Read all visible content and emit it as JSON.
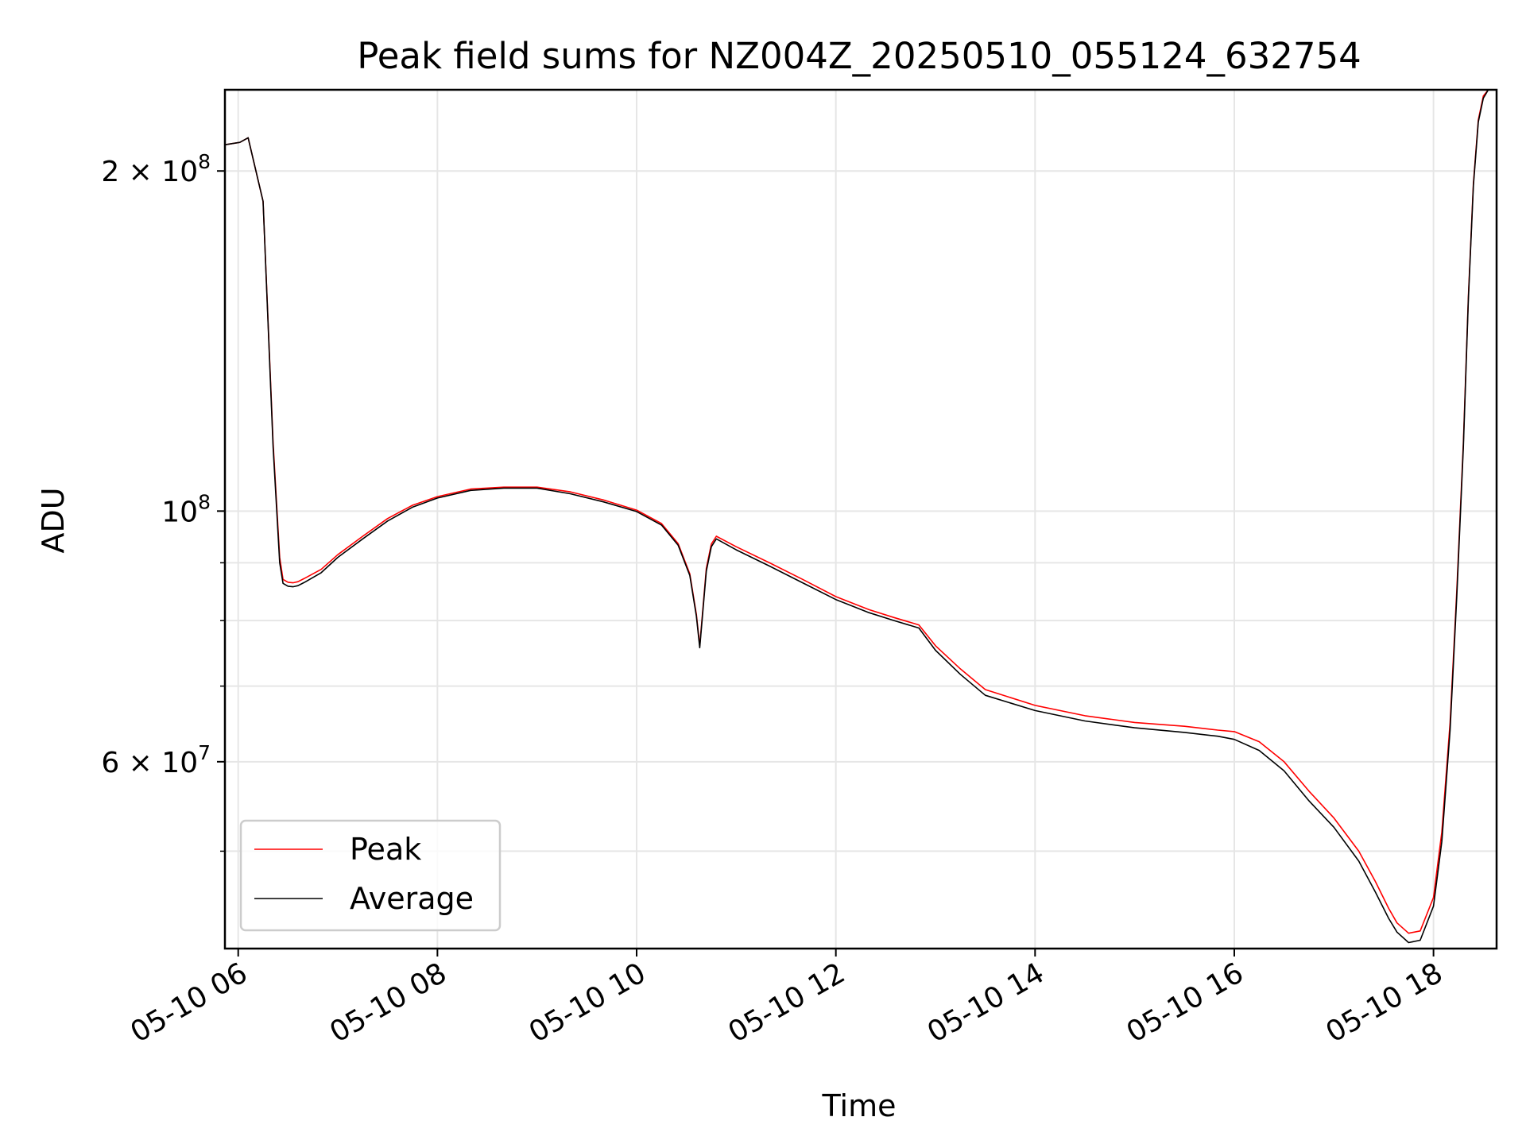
{
  "chart_data": {
    "type": "line",
    "title": "Peak field sums for NZ004Z_20250510_055124_632754",
    "xlabel": "Time",
    "ylabel": "ADU",
    "y_scale": "log",
    "grid": true,
    "legend_position": "lower-left",
    "xlim": [
      "2025-05-10 05:52",
      "2025-05-10 18:38"
    ],
    "ylim": [
      41000000,
      236000000
    ],
    "x_ticks": [
      {
        "label": "05-10 06",
        "value": "2025-05-10 06:00"
      },
      {
        "label": "05-10 08",
        "value": "2025-05-10 08:00"
      },
      {
        "label": "05-10 10",
        "value": "2025-05-10 10:00"
      },
      {
        "label": "05-10 12",
        "value": "2025-05-10 12:00"
      },
      {
        "label": "05-10 14",
        "value": "2025-05-10 14:00"
      },
      {
        "label": "05-10 16",
        "value": "2025-05-10 16:00"
      },
      {
        "label": "05-10 18",
        "value": "2025-05-10 18:00"
      }
    ],
    "y_major_ticks": [
      {
        "mantissa": "2 × 10",
        "exponent": "8",
        "value": 200000000
      },
      {
        "mantissa": "10",
        "exponent": "8",
        "value": 100000000
      },
      {
        "mantissa": "6 × 10",
        "exponent": "7",
        "value": 60000000
      }
    ],
    "y_minor_ticks": [
      50000000,
      70000000,
      80000000,
      90000000
    ],
    "series": [
      {
        "name": "Peak",
        "color": "#ff0000",
        "x": [
          "2025-05-10 05:52",
          "2025-05-10 06:01",
          "2025-05-10 06:06",
          "2025-05-10 06:15",
          "2025-05-10 06:21",
          "2025-05-10 06:25",
          "2025-05-10 06:27",
          "2025-05-10 06:30",
          "2025-05-10 06:33",
          "2025-05-10 06:36",
          "2025-05-10 06:40",
          "2025-05-10 06:50",
          "2025-05-10 07:00",
          "2025-05-10 07:15",
          "2025-05-10 07:30",
          "2025-05-10 07:45",
          "2025-05-10 08:00",
          "2025-05-10 08:20",
          "2025-05-10 08:40",
          "2025-05-10 09:00",
          "2025-05-10 09:20",
          "2025-05-10 09:40",
          "2025-05-10 10:00",
          "2025-05-10 10:15",
          "2025-05-10 10:25",
          "2025-05-10 10:32",
          "2025-05-10 10:36",
          "2025-05-10 10:38",
          "2025-05-10 10:42",
          "2025-05-10 10:45",
          "2025-05-10 10:48",
          "2025-05-10 11:00",
          "2025-05-10 11:20",
          "2025-05-10 11:40",
          "2025-05-10 12:00",
          "2025-05-10 12:20",
          "2025-05-10 12:35",
          "2025-05-10 12:50",
          "2025-05-10 13:00",
          "2025-05-10 13:15",
          "2025-05-10 13:30",
          "2025-05-10 14:00",
          "2025-05-10 14:30",
          "2025-05-10 15:00",
          "2025-05-10 15:30",
          "2025-05-10 15:50",
          "2025-05-10 16:00",
          "2025-05-10 16:15",
          "2025-05-10 16:30",
          "2025-05-10 16:45",
          "2025-05-10 17:00",
          "2025-05-10 17:15",
          "2025-05-10 17:25",
          "2025-05-10 17:33",
          "2025-05-10 17:38",
          "2025-05-10 17:45",
          "2025-05-10 17:52",
          "2025-05-10 18:00",
          "2025-05-10 18:05",
          "2025-05-10 18:10",
          "2025-05-10 18:14",
          "2025-05-10 18:18",
          "2025-05-10 18:21",
          "2025-05-10 18:24",
          "2025-05-10 18:27",
          "2025-05-10 18:30",
          "2025-05-10 18:33"
        ],
        "y": [
          211000000,
          212000000,
          214000000,
          188000000,
          115000000,
          91000000,
          87000000,
          86500000,
          86400000,
          86600000,
          87200000,
          88800000,
          91500000,
          95000000,
          98500000,
          101200000,
          103000000,
          104600000,
          105000000,
          105000000,
          104000000,
          102300000,
          100200000,
          97500000,
          93600000,
          88000000,
          81000000,
          76000000,
          89000000,
          93500000,
          95000000,
          93000000,
          90000000,
          87000000,
          84000000,
          81800000,
          80500000,
          79300000,
          76000000,
          72500000,
          69500000,
          67300000,
          65900000,
          65000000,
          64500000,
          64000000,
          63800000,
          62500000,
          60000000,
          56500000,
          53500000,
          50000000,
          47000000,
          44500000,
          43200000,
          42300000,
          42500000,
          45500000,
          52000000,
          65000000,
          85000000,
          115000000,
          155000000,
          195000000,
          222000000,
          233000000,
          236000000
        ]
      },
      {
        "name": "Average",
        "color": "#000000",
        "x": [
          "2025-05-10 05:52",
          "2025-05-10 06:01",
          "2025-05-10 06:06",
          "2025-05-10 06:15",
          "2025-05-10 06:21",
          "2025-05-10 06:25",
          "2025-05-10 06:27",
          "2025-05-10 06:30",
          "2025-05-10 06:33",
          "2025-05-10 06:36",
          "2025-05-10 06:40",
          "2025-05-10 06:50",
          "2025-05-10 07:00",
          "2025-05-10 07:15",
          "2025-05-10 07:30",
          "2025-05-10 07:45",
          "2025-05-10 08:00",
          "2025-05-10 08:20",
          "2025-05-10 08:40",
          "2025-05-10 09:00",
          "2025-05-10 09:20",
          "2025-05-10 09:40",
          "2025-05-10 10:00",
          "2025-05-10 10:15",
          "2025-05-10 10:25",
          "2025-05-10 10:32",
          "2025-05-10 10:36",
          "2025-05-10 10:38",
          "2025-05-10 10:42",
          "2025-05-10 10:45",
          "2025-05-10 10:48",
          "2025-05-10 11:00",
          "2025-05-10 11:20",
          "2025-05-10 11:40",
          "2025-05-10 12:00",
          "2025-05-10 12:20",
          "2025-05-10 12:35",
          "2025-05-10 12:50",
          "2025-05-10 13:00",
          "2025-05-10 13:15",
          "2025-05-10 13:30",
          "2025-05-10 14:00",
          "2025-05-10 14:30",
          "2025-05-10 15:00",
          "2025-05-10 15:30",
          "2025-05-10 15:50",
          "2025-05-10 16:00",
          "2025-05-10 16:15",
          "2025-05-10 16:30",
          "2025-05-10 16:45",
          "2025-05-10 17:00",
          "2025-05-10 17:15",
          "2025-05-10 17:25",
          "2025-05-10 17:33",
          "2025-05-10 17:38",
          "2025-05-10 17:45",
          "2025-05-10 17:52",
          "2025-05-10 18:00",
          "2025-05-10 18:05",
          "2025-05-10 18:10",
          "2025-05-10 18:14",
          "2025-05-10 18:18",
          "2025-05-10 18:21",
          "2025-05-10 18:24",
          "2025-05-10 18:27",
          "2025-05-10 18:30",
          "2025-05-10 18:33"
        ],
        "y": [
          211000000,
          212000000,
          214000000,
          188000000,
          114000000,
          90000000,
          86300000,
          85800000,
          85700000,
          85900000,
          86500000,
          88200000,
          91000000,
          94500000,
          98000000,
          100800000,
          102700000,
          104300000,
          104800000,
          104800000,
          103600000,
          101900000,
          99900000,
          97200000,
          93300000,
          87700000,
          80700000,
          75700000,
          88500000,
          93000000,
          94500000,
          92400000,
          89400000,
          86400000,
          83500000,
          81300000,
          80000000,
          78800000,
          75300000,
          71700000,
          68700000,
          66600000,
          65200000,
          64300000,
          63700000,
          63200000,
          62800000,
          61400000,
          58900000,
          55400000,
          52500000,
          49000000,
          46000000,
          43600000,
          42400000,
          41500000,
          41700000,
          44700000,
          51000000,
          64000000,
          84000000,
          114000000,
          154000000,
          194000000,
          221000000,
          232000000,
          236000000
        ]
      }
    ]
  }
}
